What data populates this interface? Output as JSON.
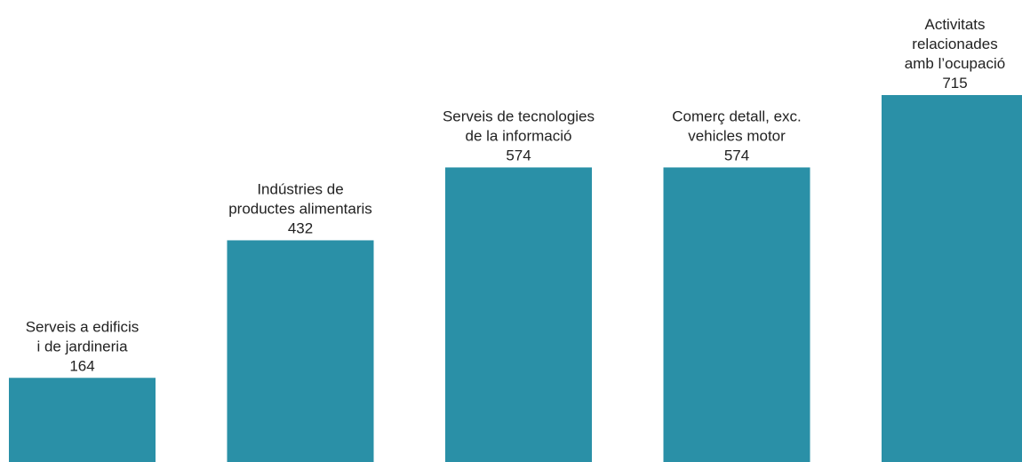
{
  "chart_data": {
    "type": "bar",
    "categories": [
      [
        "Serveis a edificis",
        "i de jardineria"
      ],
      [
        "Indústries de",
        "productes alimentaris"
      ],
      [
        "Serveis de tecnologies",
        "de la informació"
      ],
      [
        "Comerç detall, exc.",
        "vehicles motor"
      ],
      [
        "Activitats",
        "relacionades",
        "amb l’ocupació"
      ]
    ],
    "values": [
      164,
      432,
      574,
      574,
      715
    ],
    "color": "#2a90a7"
  }
}
